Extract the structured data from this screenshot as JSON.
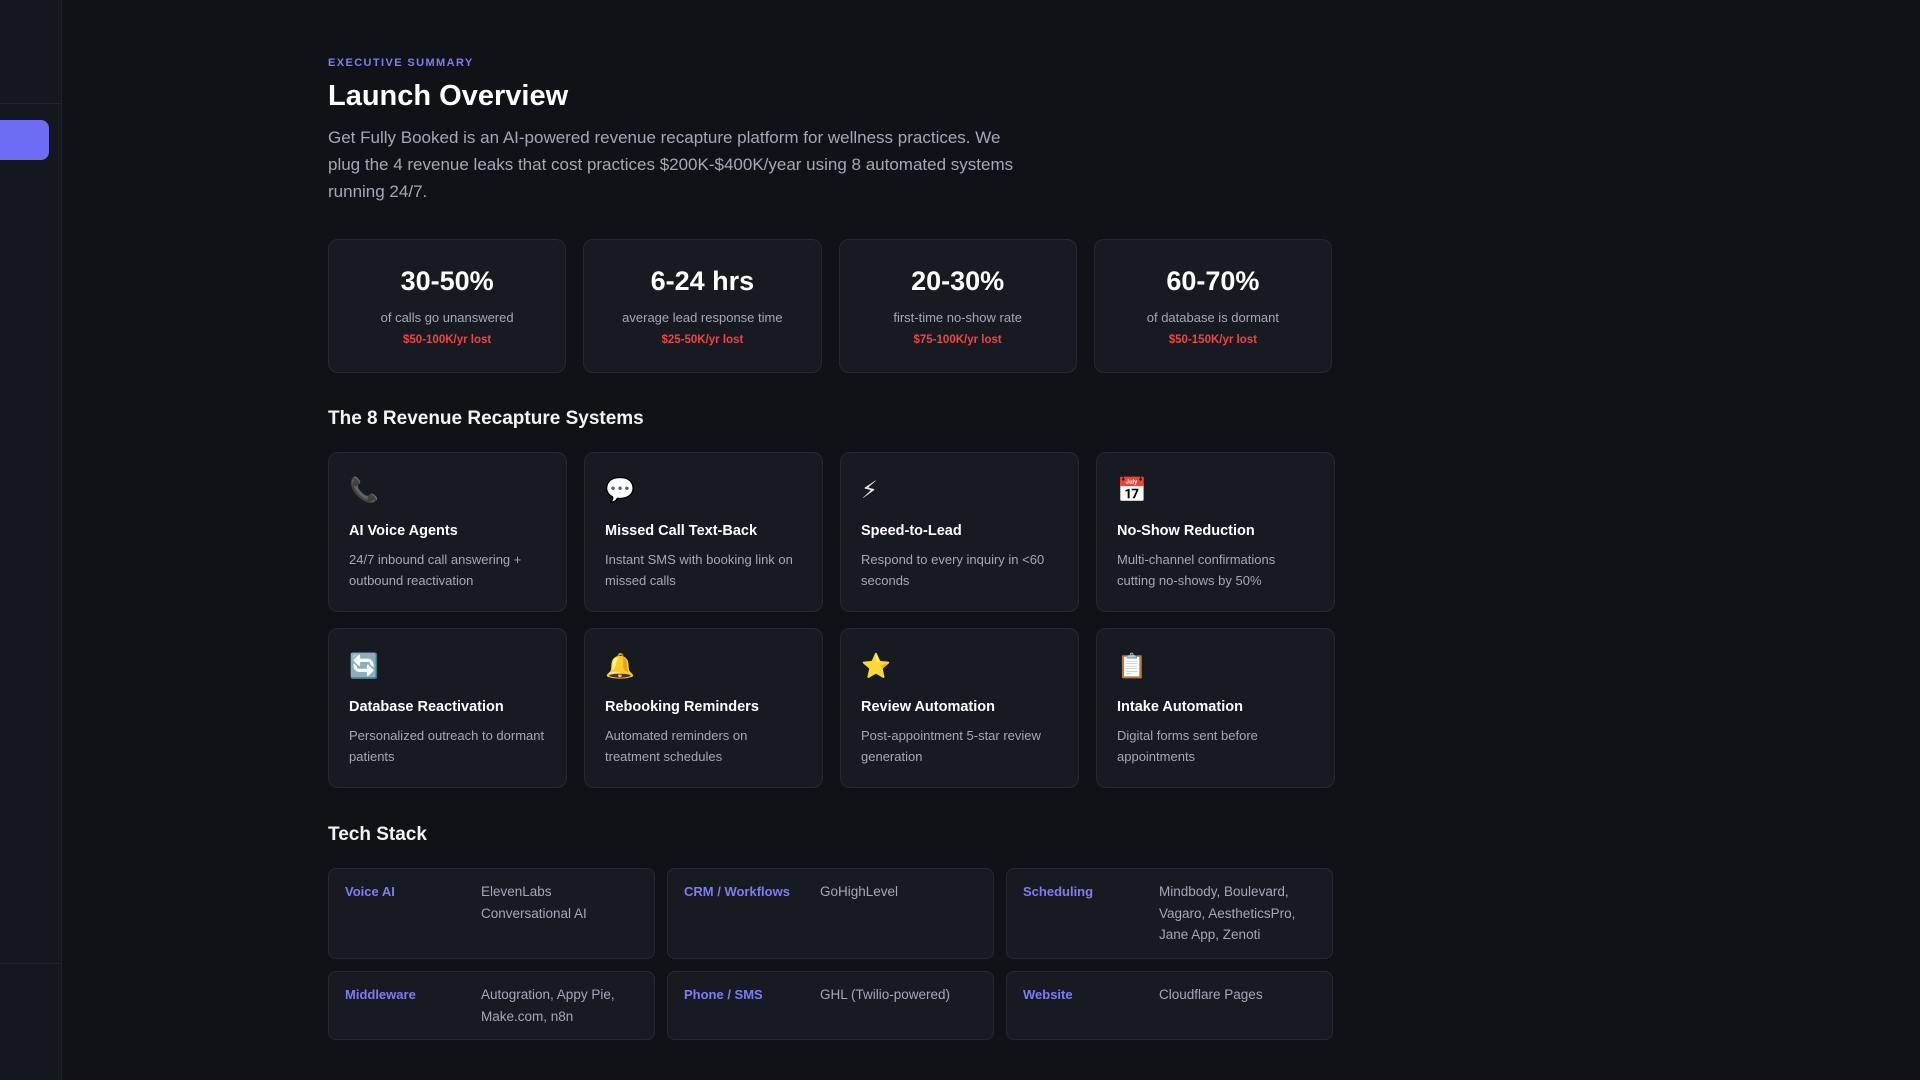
{
  "header": {
    "eyebrow": "EXECUTIVE SUMMARY",
    "title": "Launch Overview",
    "intro": "Get Fully Booked is an AI-powered revenue recapture platform for wellness practices. We plug the 4 revenue leaks that cost practices $200K-$400K/year using 8 automated systems running 24/7."
  },
  "stats": [
    {
      "value": "30-50%",
      "label": "of calls go unanswered",
      "loss": "$50-100K/yr lost"
    },
    {
      "value": "6-24 hrs",
      "label": "average lead response time",
      "loss": "$25-50K/yr lost"
    },
    {
      "value": "20-30%",
      "label": "first-time no-show rate",
      "loss": "$75-100K/yr lost"
    },
    {
      "value": "60-70%",
      "label": "of database is dormant",
      "loss": "$50-150K/yr lost"
    }
  ],
  "systems_title": "The 8 Revenue Recapture Systems",
  "systems": [
    {
      "icon": "📞",
      "icon_name": "phone-icon",
      "name": "AI Voice Agents",
      "desc": "24/7 inbound call answering + outbound reactivation"
    },
    {
      "icon": "💬",
      "icon_name": "speech-bubble-icon",
      "name": "Missed Call Text-Back",
      "desc": "Instant SMS with booking link on missed calls"
    },
    {
      "icon": "⚡",
      "icon_name": "lightning-icon",
      "name": "Speed-to-Lead",
      "desc": "Respond to every inquiry in <60 seconds"
    },
    {
      "icon": "📅",
      "icon_name": "calendar-icon",
      "name": "No-Show Reduction",
      "desc": "Multi-channel confirmations cutting no-shows by 50%"
    },
    {
      "icon": "🔄",
      "icon_name": "refresh-icon",
      "name": "Database Reactivation",
      "desc": "Personalized outreach to dormant patients"
    },
    {
      "icon": "🔔",
      "icon_name": "bell-icon",
      "name": "Rebooking Reminders",
      "desc": "Automated reminders on treatment schedules"
    },
    {
      "icon": "⭐",
      "icon_name": "star-icon",
      "name": "Review Automation",
      "desc": "Post-appointment 5-star review generation"
    },
    {
      "icon": "📋",
      "icon_name": "clipboard-icon",
      "name": "Intake Automation",
      "desc": "Digital forms sent before appointments"
    }
  ],
  "tech_title": "Tech Stack",
  "tech": [
    {
      "category": "Voice AI",
      "value": "ElevenLabs Conversational AI"
    },
    {
      "category": "CRM / Workflows",
      "value": "GoHighLevel"
    },
    {
      "category": "Scheduling",
      "value": "Mindbody, Boulevard, Vagaro, AestheticsPro, Jane App, Zenoti"
    },
    {
      "category": "Middleware",
      "value": "Autogration, Appy Pie, Make.com, n8n"
    },
    {
      "category": "Phone / SMS",
      "value": "GHL (Twilio-powered)"
    },
    {
      "category": "Website",
      "value": "Cloudflare Pages"
    }
  ],
  "colors": {
    "accent": "#6c6cf2",
    "loss": "#ef4444",
    "background": "#111218",
    "card": "#181a22"
  }
}
